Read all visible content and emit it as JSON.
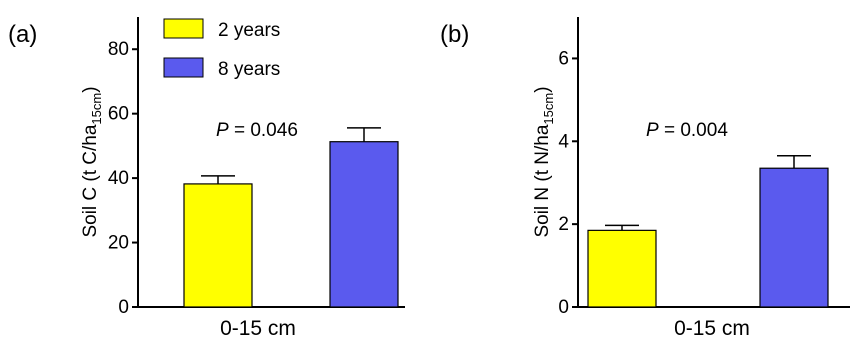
{
  "chart_data": [
    {
      "type": "bar",
      "panel_label": "(a)",
      "categories": [
        "0-15 cm"
      ],
      "series": [
        {
          "name": "2 years",
          "values": [
            38.2
          ],
          "error": [
            2.5
          ],
          "color": "#ffff00"
        },
        {
          "name": "8 years",
          "values": [
            51.3
          ],
          "error": [
            4.3
          ],
          "color": "#5a5aee"
        }
      ],
      "ylabel": {
        "main": "Soil C (t C/ha",
        "sub": "15cm",
        "end": ")"
      },
      "ylim": [
        0,
        90
      ],
      "yticks": [
        "0",
        "20",
        "40",
        "60",
        "80"
      ],
      "annotation": {
        "italic": "P",
        "rest": " = 0.046"
      },
      "legend": "top-left"
    },
    {
      "type": "bar",
      "panel_label": "(b)",
      "categories": [
        "0-15 cm"
      ],
      "series": [
        {
          "name": "2 years",
          "values": [
            1.85
          ],
          "error": [
            0.12
          ],
          "color": "#ffff00"
        },
        {
          "name": "8 years",
          "values": [
            3.35
          ],
          "error": [
            0.3
          ],
          "color": "#5a5aee"
        }
      ],
      "ylabel": {
        "main": "Soil N (t N/ha",
        "sub": "15cm",
        "end": ")"
      },
      "ylim": [
        0,
        7
      ],
      "yticks": [
        "0",
        "2",
        "4",
        "6"
      ],
      "annotation": {
        "italic": "P",
        "rest": " = 0.004"
      }
    }
  ]
}
